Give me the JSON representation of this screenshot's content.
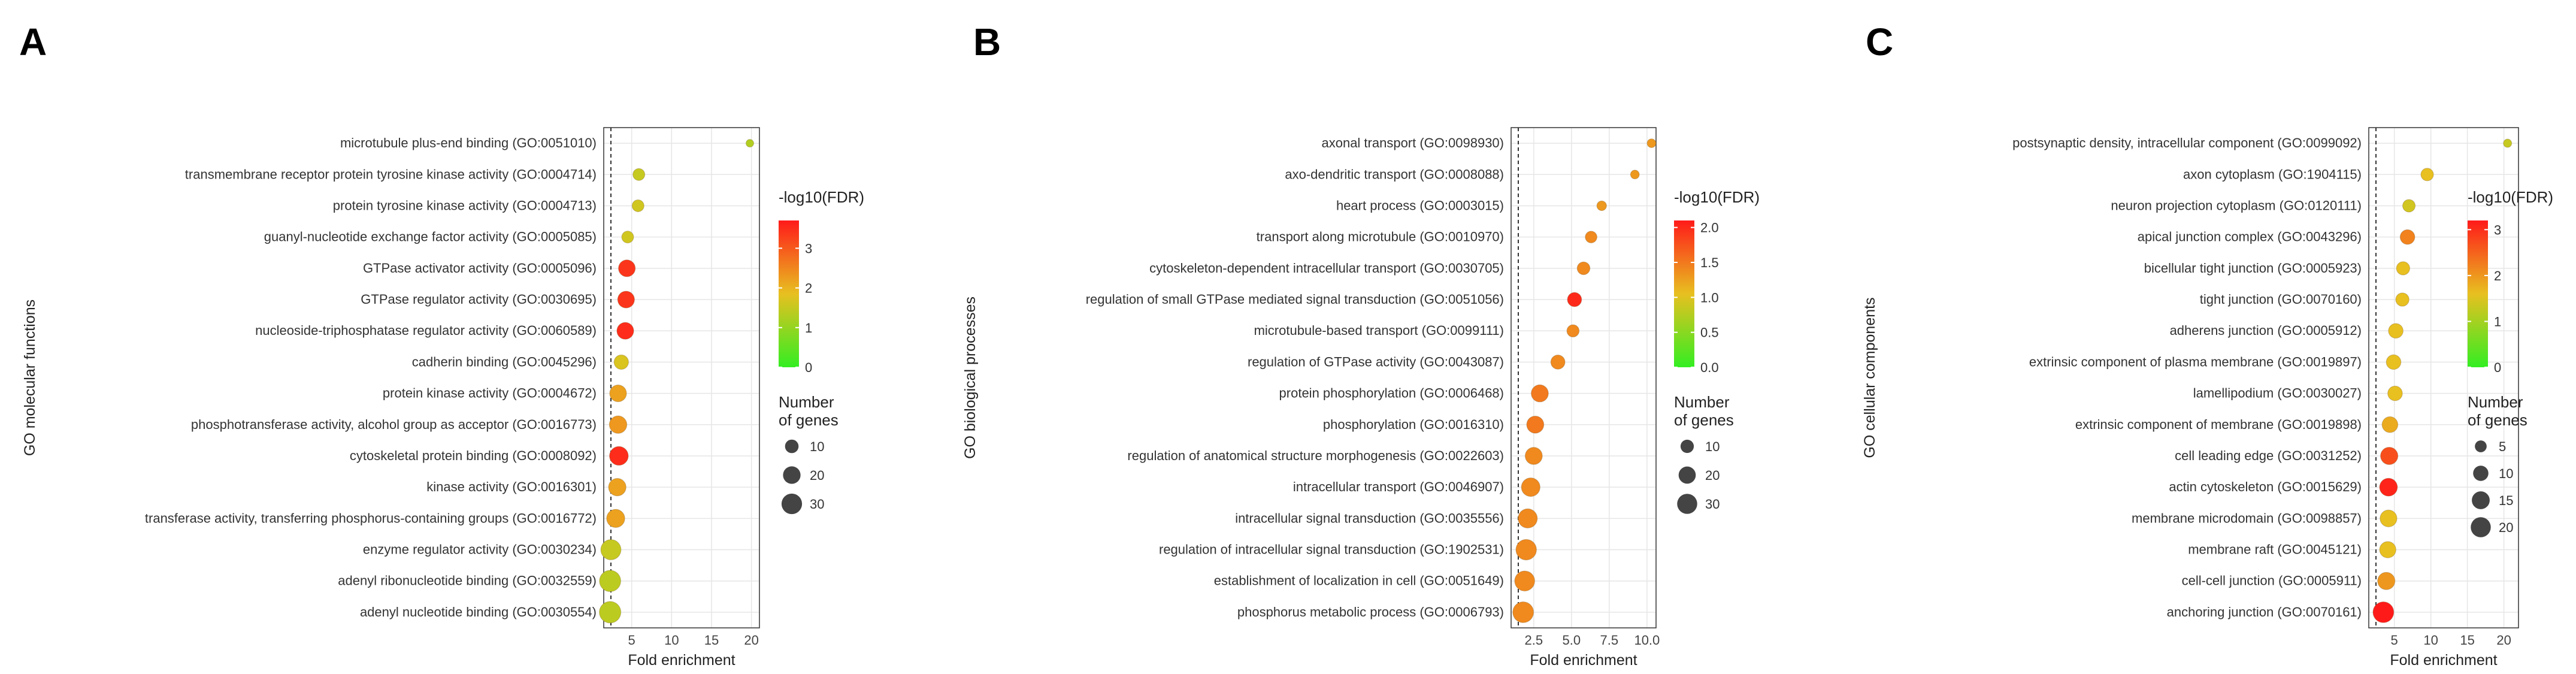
{
  "chart_data": [
    {
      "panel": "A",
      "type": "scatter",
      "xlabel": "Fold enrichment",
      "ylabel": "GO molecular functions",
      "xlim": [
        1.5,
        21
      ],
      "xticks": [
        5,
        10,
        15,
        20
      ],
      "color_legend": {
        "title": "-log10(FDR)",
        "min": 0,
        "max": 3.7,
        "ticks": [
          0,
          1,
          2,
          3
        ]
      },
      "size_legend": {
        "title": "Number of\ngenes",
        "title_lines": [
          "Number",
          "of genes"
        ],
        "ticks": [
          10,
          20,
          30
        ],
        "min": 1,
        "max": 34
      },
      "terms": [
        "microtubule plus-end binding (GO:0051010)",
        "transmembrane receptor protein tyrosine kinase activity (GO:0004714)",
        "protein tyrosine kinase activity (GO:0004713)",
        "guanyl-nucleotide exchange factor activity (GO:0005085)",
        "GTPase activator activity (GO:0005096)",
        "GTPase regulator activity (GO:0030695)",
        "nucleoside-triphosphatase regulator activity (GO:0060589)",
        "cadherin binding (GO:0045296)",
        "protein kinase activity (GO:0004672)",
        "phosphotransferase activity, alcohol group as acceptor (GO:0016773)",
        "cytoskeletal protein binding (GO:0008092)",
        "kinase activity (GO:0016301)",
        "transferase activity, transferring phosphorus-containing groups (GO:0016772)",
        "enzyme regulator activity (GO:0030234)",
        "adenyl ribonucleotide binding (GO:0032559)",
        "adenyl nucleotide binding (GO:0030554)"
      ],
      "fold_enrichment": [
        19.8,
        5.9,
        5.8,
        4.5,
        4.4,
        4.3,
        4.2,
        3.7,
        3.3,
        3.3,
        3.4,
        3.2,
        3.0,
        2.4,
        2.3,
        2.3
      ],
      "neg_log10_fdr": [
        1.3,
        1.5,
        1.6,
        1.6,
        3.4,
        3.4,
        3.5,
        1.7,
        2.2,
        2.3,
        3.5,
        2.2,
        2.2,
        1.5,
        1.4,
        1.4
      ],
      "gene_counts": [
        2,
        7,
        7,
        7,
        18,
        18,
        18,
        12,
        18,
        20,
        24,
        20,
        22,
        29,
        33,
        34
      ]
    },
    {
      "panel": "B",
      "type": "scatter",
      "xlabel": "Fold enrichment",
      "ylabel": "GO biological processes",
      "xlim": [
        1,
        10.6
      ],
      "xticks": [
        2.5,
        5.0,
        7.5,
        10.0
      ],
      "xtick_labels": [
        "2.5",
        "5.0",
        "7.5",
        "10.0"
      ],
      "color_legend": {
        "title": "-log10(FDR)",
        "min": 0,
        "max": 2.1,
        "ticks": [
          0.0,
          0.5,
          1.0,
          1.5,
          2.0
        ],
        "tick_labels": [
          "0.0",
          "0.5",
          "1.0",
          "1.5",
          "2.0"
        ]
      },
      "size_legend": {
        "title": "Number of\ngenes",
        "title_lines": [
          "Number",
          "of genes"
        ],
        "ticks": [
          10,
          20,
          30
        ],
        "min": 1,
        "max": 36
      },
      "terms": [
        "axonal transport (GO:0098930)",
        "axo-dendritic transport (GO:0008088)",
        "heart process (GO:0003015)",
        "transport along microtubule (GO:0010970)",
        "cytoskeleton-dependent intracellular transport (GO:0030705)",
        "regulation of small GTPase mediated signal transduction (GO:0051056)",
        "microtubule-based transport (GO:0099111)",
        "regulation of GTPase activity (GO:0043087)",
        "protein phosphorylation (GO:0006468)",
        "phosphorylation (GO:0016310)",
        "regulation of anatomical structure morphogenesis (GO:0022603)",
        "intracellular transport (GO:0046907)",
        "intracellular signal transduction (GO:0035556)",
        "regulation of intracellular signal transduction (GO:1902531)",
        "establishment of localization in cell (GO:0051649)",
        "phosphorus metabolic process (GO:0006793)"
      ],
      "fold_enrichment": [
        10.3,
        9.2,
        7.0,
        6.3,
        5.8,
        5.2,
        5.1,
        4.1,
        2.9,
        2.6,
        2.5,
        2.3,
        2.1,
        2.0,
        1.9,
        1.8
      ],
      "neg_log10_fdr": [
        1.3,
        1.3,
        1.3,
        1.4,
        1.4,
        2.0,
        1.4,
        1.4,
        1.5,
        1.5,
        1.4,
        1.4,
        1.4,
        1.4,
        1.4,
        1.4
      ],
      "gene_counts": [
        3,
        3,
        4,
        7,
        9,
        12,
        8,
        12,
        20,
        20,
        20,
        25,
        27,
        32,
        30,
        33
      ]
    },
    {
      "panel": "C",
      "type": "scatter",
      "xlabel": "Fold enrichment",
      "ylabel": "GO cellular components",
      "xlim": [
        1.5,
        22
      ],
      "xticks": [
        5,
        10,
        15,
        20
      ],
      "color_legend": {
        "title": "-log10(FDR)",
        "min": 0,
        "max": 3.2,
        "ticks": [
          0,
          1,
          2,
          3
        ]
      },
      "size_legend": {
        "title": "Number of\ngenes",
        "title_lines": [
          "Number",
          "of genes"
        ],
        "ticks": [
          5,
          10,
          15,
          20
        ],
        "min": 1,
        "max": 24
      },
      "terms": [
        "postsynaptic density, intracellular component (GO:0099092)",
        "axon cytoplasm (GO:1904115)",
        "neuron projection cytoplasm (GO:0120111)",
        "apical junction complex (GO:0043296)",
        "bicellular tight junction (GO:0005923)",
        "tight junction (GO:0070160)",
        "adherens junction (GO:0005912)",
        "extrinsic component of plasma membrane (GO:0019897)",
        "lamellipodium (GO:0030027)",
        "extrinsic component of membrane (GO:0019898)",
        "cell leading edge (GO:0031252)",
        "actin cytoskeleton (GO:0015629)",
        "membrane microdomain (GO:0098857)",
        "membrane raft (GO:0045121)",
        "cell-cell junction (GO:0005911)",
        "anchoring junction (GO:0070161)"
      ],
      "fold_enrichment": [
        20.5,
        9.5,
        7.0,
        6.8,
        6.2,
        6.1,
        5.2,
        4.9,
        5.1,
        4.4,
        4.3,
        4.2,
        4.2,
        4.1,
        3.9,
        3.5
      ],
      "neg_log10_fdr": [
        1.3,
        1.6,
        1.4,
        2.2,
        1.6,
        1.6,
        1.6,
        1.6,
        1.6,
        1.8,
        2.7,
        3.1,
        1.6,
        1.6,
        2.0,
        3.2
      ],
      "gene_counts": [
        2,
        6,
        6,
        9,
        7,
        7,
        9,
        9,
        9,
        11,
        14,
        15,
        13,
        12,
        14,
        22
      ]
    }
  ]
}
